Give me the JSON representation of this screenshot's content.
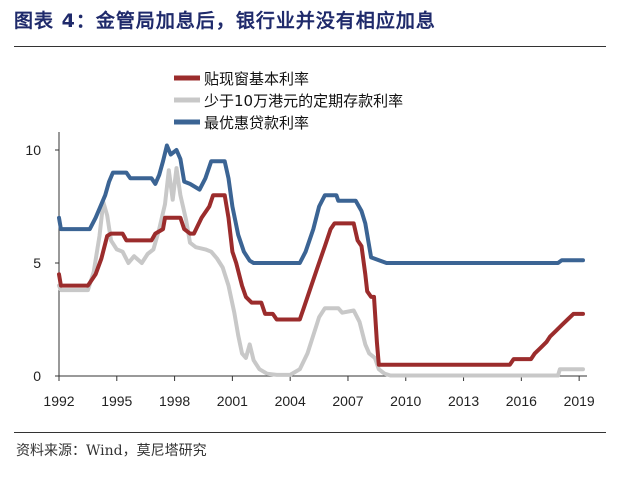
{
  "header": {
    "title": "图表 4：金管局加息后，银行业并没有相应加息",
    "source": "资料来源：Wind，莫尼塔研究"
  },
  "chart_data": {
    "type": "line",
    "xlim": [
      1992,
      2019.2
    ],
    "ylim": [
      0,
      10
    ],
    "x_ticks": [
      "1992",
      "1995",
      "1998",
      "2001",
      "2004",
      "2007",
      "2010",
      "2013",
      "2016",
      "2019"
    ],
    "y_ticks": [
      "0",
      "5",
      "10"
    ],
    "grid": false,
    "legend_position": "top",
    "series": [
      {
        "name": "贴现窗基本利率",
        "color": "#9b2c2c",
        "points": [
          [
            1992,
            4.5
          ],
          [
            1992.1,
            4.0
          ],
          [
            1993.5,
            4.0
          ],
          [
            1993.9,
            4.5
          ],
          [
            1994.2,
            5.2
          ],
          [
            1994.5,
            6.2
          ],
          [
            1994.7,
            6.3
          ],
          [
            1995.3,
            6.3
          ],
          [
            1995.5,
            6.0
          ],
          [
            1996.8,
            6.0
          ],
          [
            1997.0,
            6.3
          ],
          [
            1997.4,
            6.5
          ],
          [
            1997.5,
            7.0
          ],
          [
            1998.3,
            7.0
          ],
          [
            1998.5,
            6.5
          ],
          [
            1998.8,
            6.3
          ],
          [
            1999.0,
            6.3
          ],
          [
            1999.4,
            7.0
          ],
          [
            1999.8,
            7.5
          ],
          [
            2000.0,
            8.0
          ],
          [
            2000.6,
            8.0
          ],
          [
            2000.8,
            7.0
          ],
          [
            2001.0,
            5.5
          ],
          [
            2001.2,
            5.0
          ],
          [
            2001.5,
            4.0
          ],
          [
            2001.7,
            3.5
          ],
          [
            2002.0,
            3.25
          ],
          [
            2002.5,
            3.25
          ],
          [
            2002.7,
            2.75
          ],
          [
            2003.1,
            2.75
          ],
          [
            2003.3,
            2.5
          ],
          [
            2004.5,
            2.5
          ],
          [
            2004.7,
            3.0
          ],
          [
            2005.0,
            3.75
          ],
          [
            2005.4,
            4.75
          ],
          [
            2005.8,
            5.75
          ],
          [
            2006.1,
            6.5
          ],
          [
            2006.3,
            6.75
          ],
          [
            2007.3,
            6.75
          ],
          [
            2007.5,
            6.0
          ],
          [
            2007.7,
            5.75
          ],
          [
            2007.9,
            4.5
          ],
          [
            2008.0,
            3.75
          ],
          [
            2008.2,
            3.5
          ],
          [
            2008.35,
            3.5
          ],
          [
            2008.5,
            1.5
          ],
          [
            2008.6,
            0.5
          ],
          [
            2015.4,
            0.5
          ],
          [
            2015.6,
            0.75
          ],
          [
            2016.5,
            0.75
          ],
          [
            2016.7,
            1.0
          ],
          [
            2017.0,
            1.25
          ],
          [
            2017.3,
            1.5
          ],
          [
            2017.5,
            1.75
          ],
          [
            2017.8,
            2.0
          ],
          [
            2018.1,
            2.25
          ],
          [
            2018.4,
            2.5
          ],
          [
            2018.7,
            2.75
          ],
          [
            2019.2,
            2.75
          ]
        ]
      },
      {
        "name": "少于10万港元的定期存款利率",
        "color": "#c8c8c8",
        "points": [
          [
            1992,
            4.0
          ],
          [
            1992.1,
            3.8
          ],
          [
            1993.5,
            3.8
          ],
          [
            1993.8,
            4.6
          ],
          [
            1994.1,
            6.2
          ],
          [
            1994.3,
            7.7
          ],
          [
            1994.5,
            7.1
          ],
          [
            1994.7,
            6.0
          ],
          [
            1995.0,
            5.6
          ],
          [
            1995.3,
            5.5
          ],
          [
            1995.6,
            5.0
          ],
          [
            1995.9,
            5.3
          ],
          [
            1996.3,
            5.0
          ],
          [
            1996.6,
            5.4
          ],
          [
            1996.9,
            5.6
          ],
          [
            1997.2,
            6.5
          ],
          [
            1997.5,
            7.6
          ],
          [
            1997.7,
            9.1
          ],
          [
            1997.9,
            7.8
          ],
          [
            1998.1,
            9.2
          ],
          [
            1998.3,
            8.0
          ],
          [
            1998.6,
            6.9
          ],
          [
            1998.8,
            5.9
          ],
          [
            1999.1,
            5.7
          ],
          [
            1999.6,
            5.6
          ],
          [
            1999.9,
            5.5
          ],
          [
            2000.2,
            5.2
          ],
          [
            2000.5,
            4.8
          ],
          [
            2000.8,
            4.0
          ],
          [
            2001.1,
            2.8
          ],
          [
            2001.3,
            1.8
          ],
          [
            2001.5,
            1.0
          ],
          [
            2001.7,
            0.8
          ],
          [
            2001.9,
            1.4
          ],
          [
            2002.1,
            0.7
          ],
          [
            2002.4,
            0.3
          ],
          [
            2002.8,
            0.1
          ],
          [
            2003.3,
            0.05
          ],
          [
            2004.0,
            0.05
          ],
          [
            2004.5,
            0.3
          ],
          [
            2004.9,
            1.0
          ],
          [
            2005.2,
            1.8
          ],
          [
            2005.5,
            2.6
          ],
          [
            2005.8,
            3.0
          ],
          [
            2006.5,
            3.0
          ],
          [
            2006.7,
            2.8
          ],
          [
            2007.3,
            2.9
          ],
          [
            2007.6,
            2.4
          ],
          [
            2007.9,
            1.4
          ],
          [
            2008.1,
            1.0
          ],
          [
            2008.4,
            0.8
          ],
          [
            2008.6,
            0.3
          ],
          [
            2008.9,
            0.1
          ],
          [
            2009.2,
            0.02
          ],
          [
            2017.9,
            0.02
          ],
          [
            2018.0,
            0.3
          ],
          [
            2019.2,
            0.3
          ]
        ]
      },
      {
        "name": "最优惠贷款利率",
        "color": "#3b6494",
        "points": [
          [
            1992,
            7.0
          ],
          [
            1992.1,
            6.5
          ],
          [
            1993.6,
            6.5
          ],
          [
            1993.9,
            7.0
          ],
          [
            1994.2,
            7.6
          ],
          [
            1994.4,
            8.0
          ],
          [
            1994.6,
            8.6
          ],
          [
            1994.8,
            9.0
          ],
          [
            1995.5,
            9.0
          ],
          [
            1995.7,
            8.75
          ],
          [
            1996.8,
            8.75
          ],
          [
            1997.0,
            8.5
          ],
          [
            1997.2,
            8.9
          ],
          [
            1997.4,
            9.5
          ],
          [
            1997.6,
            10.2
          ],
          [
            1997.8,
            9.8
          ],
          [
            1998.1,
            10.0
          ],
          [
            1998.3,
            9.6
          ],
          [
            1998.5,
            8.6
          ],
          [
            1998.8,
            8.5
          ],
          [
            1999.3,
            8.25
          ],
          [
            1999.6,
            8.75
          ],
          [
            1999.9,
            9.5
          ],
          [
            2000.6,
            9.5
          ],
          [
            2000.8,
            8.75
          ],
          [
            2001.0,
            7.5
          ],
          [
            2001.3,
            6.25
          ],
          [
            2001.6,
            5.5
          ],
          [
            2001.9,
            5.1
          ],
          [
            2002.1,
            5.0
          ],
          [
            2004.5,
            5.0
          ],
          [
            2004.8,
            5.5
          ],
          [
            2005.2,
            6.5
          ],
          [
            2005.5,
            7.5
          ],
          [
            2005.8,
            8.0
          ],
          [
            2006.4,
            8.0
          ],
          [
            2006.5,
            7.75
          ],
          [
            2007.4,
            7.75
          ],
          [
            2007.7,
            7.3
          ],
          [
            2007.9,
            6.75
          ],
          [
            2008.2,
            5.25
          ],
          [
            2009.0,
            5.0
          ],
          [
            2017.9,
            5.0
          ],
          [
            2018.1,
            5.125
          ],
          [
            2019.2,
            5.125
          ]
        ]
      }
    ]
  }
}
